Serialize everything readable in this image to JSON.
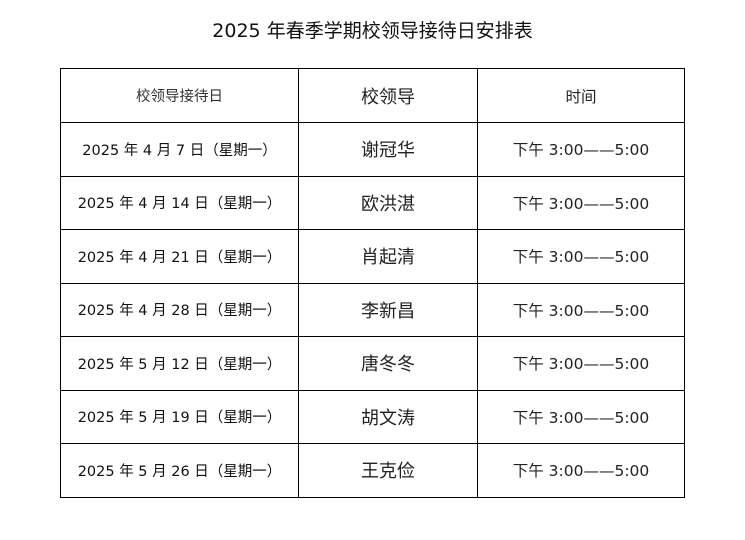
{
  "title": "2025 年春季学期校领导接待日安排表",
  "table": {
    "headers": [
      "校领导接待日",
      "校领导",
      "时间"
    ],
    "rows": [
      {
        "date": "2025 年 4 月 7 日（星期一）",
        "leader": "谢冠华",
        "time": "下午 3:00——5:00"
      },
      {
        "date": "2025 年 4 月 14 日（星期一）",
        "leader": "欧洪湛",
        "time": "下午 3:00——5:00"
      },
      {
        "date": "2025 年 4 月 21 日（星期一）",
        "leader": "肖起清",
        "time": "下午 3:00——5:00"
      },
      {
        "date": "2025 年 4 月 28 日（星期一）",
        "leader": "李新昌",
        "time": "下午 3:00——5:00"
      },
      {
        "date": "2025 年 5 月 12 日（星期一）",
        "leader": "唐冬冬",
        "time": "下午 3:00——5:00"
      },
      {
        "date": "2025 年 5 月 19 日（星期一）",
        "leader": "胡文涛",
        "time": "下午 3:00——5:00"
      },
      {
        "date": "2025 年 5 月 26 日（星期一）",
        "leader": "王克俭",
        "time": "下午 3:00——5:00"
      }
    ]
  }
}
